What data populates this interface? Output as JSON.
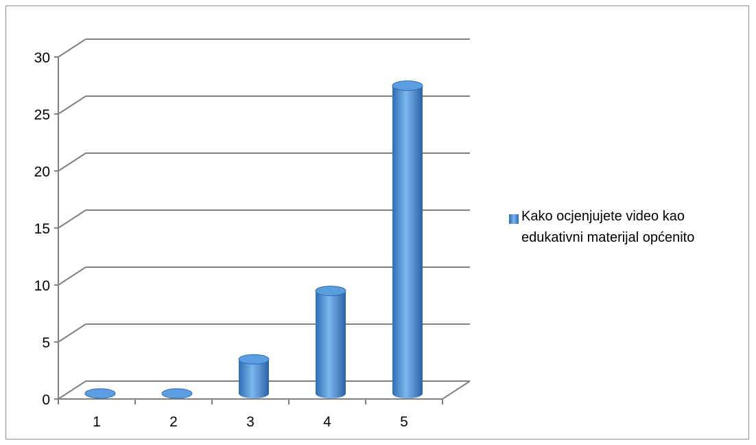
{
  "chart_data": {
    "type": "bar",
    "style": "3d-cylinder",
    "categories": [
      "1",
      "2",
      "3",
      "4",
      "5"
    ],
    "series": [
      {
        "name": "Kako ocjenjujete video kao edukativni materijal općenito",
        "values": [
          0,
          0,
          3,
          9,
          27
        ]
      }
    ],
    "title": "",
    "xlabel": "",
    "ylabel": "",
    "ylim": [
      0,
      30
    ],
    "yticks": [
      0,
      5,
      10,
      15,
      20,
      25,
      30
    ],
    "grid": true,
    "legend_position": "right",
    "colors": {
      "bar_light": "#7fb5ea",
      "bar_mid": "#4a8fd6",
      "bar_dark": "#2d6cb3",
      "bar_top": "#5b9ee0",
      "grid": "#808080",
      "axis": "#808080"
    }
  }
}
